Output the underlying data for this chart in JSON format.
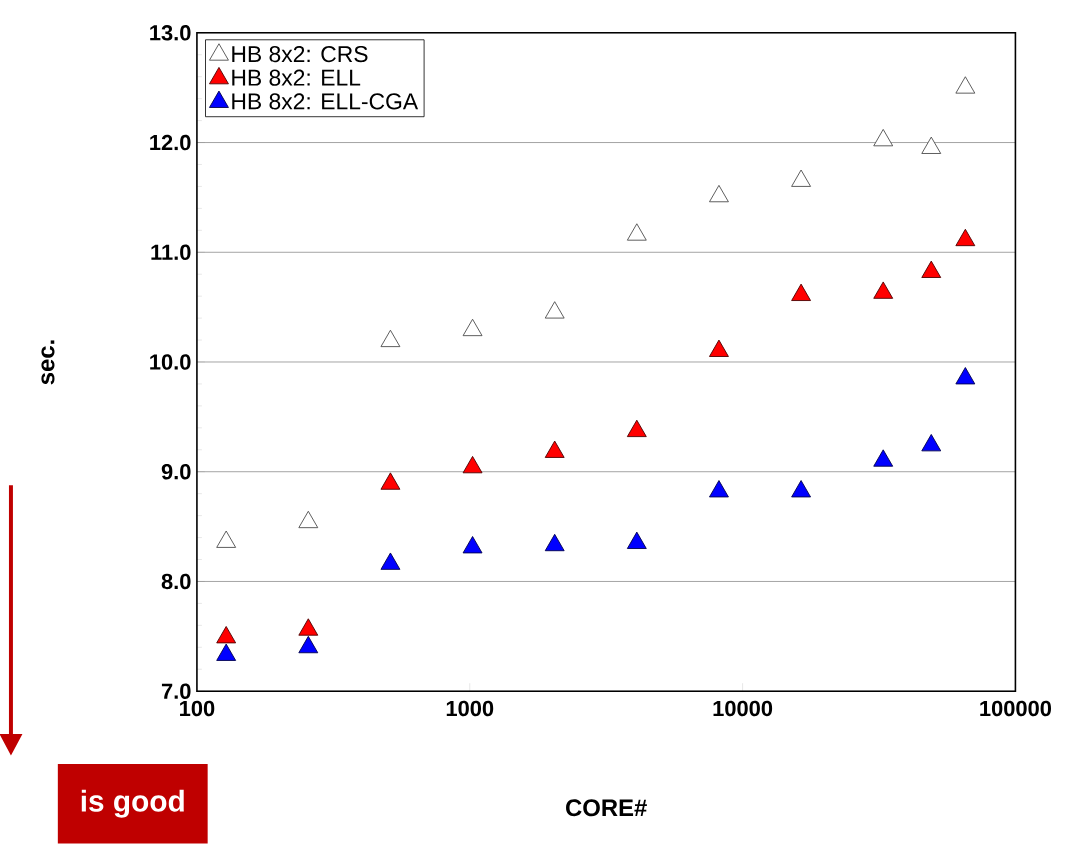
{
  "chart_data": {
    "type": "scatter",
    "xlabel": "CORE#",
    "ylabel": "sec.",
    "x": [
      128,
      256,
      512,
      1024,
      2048,
      4096,
      8192,
      16384,
      32768,
      49152,
      65536
    ],
    "series": [
      {
        "name": "HB 8x2: CRS",
        "color": "#ffffff",
        "values": [
          8.36,
          8.54,
          10.19,
          10.29,
          10.45,
          11.16,
          11.51,
          11.65,
          12.02,
          11.95,
          12.5
        ]
      },
      {
        "name": "HB 8x2: ELL",
        "color": "#ff0000",
        "values": [
          7.49,
          7.56,
          8.89,
          9.04,
          9.18,
          9.37,
          10.1,
          10.61,
          10.63,
          10.82,
          11.11
        ]
      },
      {
        "name": "HB 8x2: ELL-CGA",
        "color": "#0000ff",
        "values": [
          7.33,
          7.4,
          8.16,
          8.31,
          8.33,
          8.35,
          8.82,
          8.82,
          9.1,
          9.24,
          9.85
        ]
      }
    ],
    "log": "x",
    "xlim": [
      100,
      100000
    ],
    "xticks": [
      100,
      1000,
      10000,
      100000
    ],
    "ylim": [
      7,
      13
    ],
    "yticks": [
      {
        "value": 7,
        "label": "7.0"
      },
      {
        "value": 8,
        "label": "8.0"
      },
      {
        "value": 9,
        "label": "9.0"
      },
      {
        "value": 10,
        "label": "10.0"
      },
      {
        "value": 11,
        "label": "11.0"
      },
      {
        "value": 12,
        "label": "12.0"
      },
      {
        "value": 13,
        "label": "13.0"
      }
    ],
    "grid": "y",
    "legend": "top left",
    "marker": "triangle",
    "annotations": [
      "is good"
    ]
  }
}
